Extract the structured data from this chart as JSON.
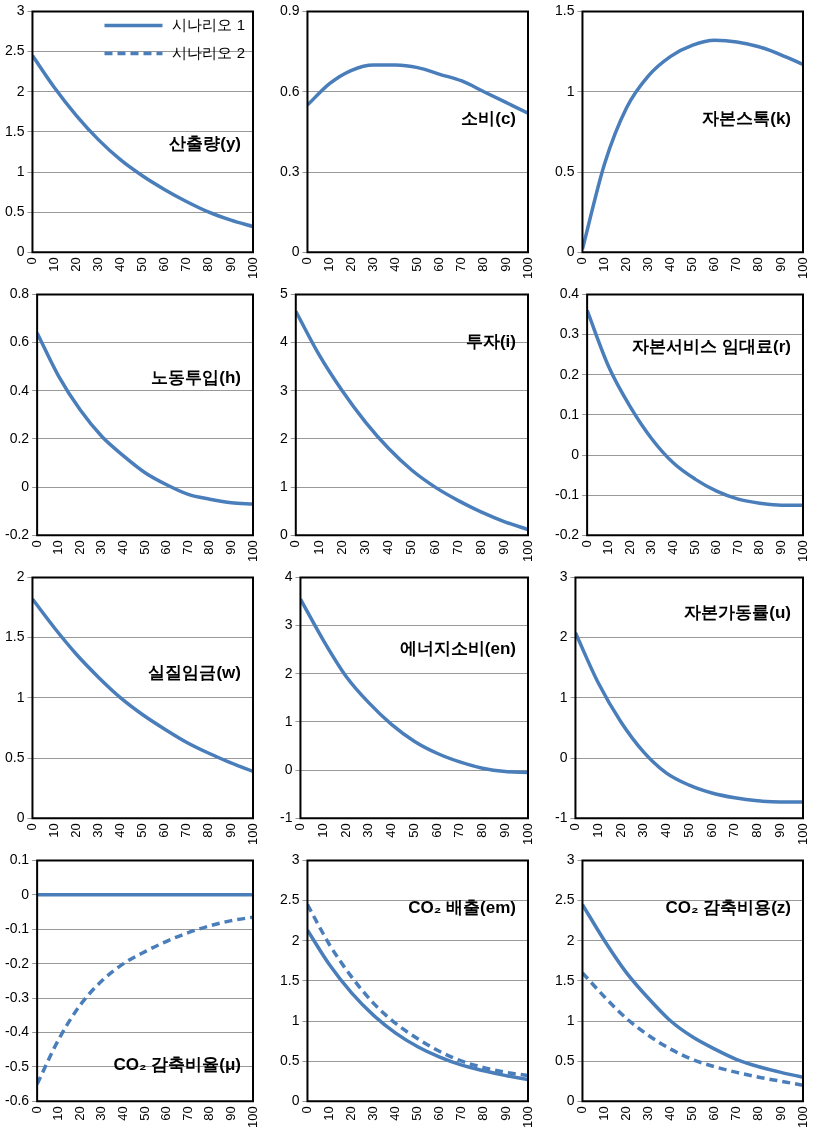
{
  "chart_data": [
    {
      "type": "line",
      "title": "산출량(y)",
      "x": [
        0,
        10,
        20,
        30,
        40,
        50,
        60,
        70,
        80,
        90,
        100
      ],
      "xlim": [
        0,
        100
      ],
      "xticks": [
        0,
        10,
        20,
        30,
        40,
        50,
        60,
        70,
        80,
        90,
        100
      ],
      "ylim": [
        0,
        3
      ],
      "yticks": [
        0,
        0.5,
        1,
        1.5,
        2,
        2.5,
        3
      ],
      "grid": "y",
      "legend": "top right",
      "marker": "none",
      "series": [
        {
          "name": "시나리오 1",
          "color": "#4a7ebb",
          "line_style": "solid",
          "values": [
            2.45,
            2.05,
            1.7,
            1.4,
            1.15,
            0.95,
            0.78,
            0.63,
            0.5,
            0.4,
            0.32
          ]
        },
        {
          "name": "시나리오 2",
          "color": "#4a7ebb",
          "line_style": "dashed",
          "values": [
            null,
            null,
            null,
            null,
            null,
            null,
            null,
            null,
            null,
            null,
            null
          ]
        }
      ]
    },
    {
      "type": "line",
      "title": "소비(c)",
      "x": [
        0,
        10,
        20,
        30,
        40,
        50,
        60,
        70,
        80,
        90,
        100
      ],
      "xlim": [
        0,
        100
      ],
      "xticks": [
        0,
        10,
        20,
        30,
        40,
        50,
        60,
        70,
        80,
        90,
        100
      ],
      "ylim": [
        0,
        0.9
      ],
      "yticks": [
        0,
        0.3,
        0.6,
        0.9
      ],
      "grid": "y",
      "marker": "none",
      "series": [
        {
          "color": "#4a7ebb",
          "line_style": "solid",
          "values": [
            0.55,
            0.63,
            0.68,
            0.7,
            0.7,
            0.69,
            0.665,
            0.64,
            0.6,
            0.56,
            0.52
          ]
        }
      ]
    },
    {
      "type": "line",
      "title": "자본스톡(k)",
      "x": [
        0,
        10,
        20,
        30,
        40,
        50,
        60,
        70,
        80,
        90,
        100
      ],
      "xlim": [
        0,
        100
      ],
      "xticks": [
        0,
        10,
        20,
        30,
        40,
        50,
        60,
        70,
        80,
        90,
        100
      ],
      "ylim": [
        0,
        1.5
      ],
      "yticks": [
        0,
        0.5,
        1,
        1.5
      ],
      "grid": "y",
      "marker": "none",
      "series": [
        {
          "color": "#4a7ebb",
          "line_style": "solid",
          "values": [
            0.02,
            0.55,
            0.9,
            1.1,
            1.22,
            1.29,
            1.32,
            1.31,
            1.28,
            1.23,
            1.17
          ]
        }
      ]
    },
    {
      "type": "line",
      "title": "노동투입(h)",
      "x": [
        0,
        10,
        20,
        30,
        40,
        50,
        60,
        70,
        80,
        90,
        100
      ],
      "xlim": [
        0,
        100
      ],
      "xticks": [
        0,
        10,
        20,
        30,
        40,
        50,
        60,
        70,
        80,
        90,
        100
      ],
      "ylim": [
        -0.2,
        0.8
      ],
      "yticks": [
        -0.2,
        0,
        0.2,
        0.4,
        0.6,
        0.8
      ],
      "grid": "y",
      "marker": "none",
      "series": [
        {
          "color": "#4a7ebb",
          "line_style": "solid",
          "values": [
            0.64,
            0.46,
            0.32,
            0.21,
            0.13,
            0.06,
            0.01,
            -0.03,
            -0.05,
            -0.065,
            -0.07
          ]
        }
      ]
    },
    {
      "type": "line",
      "title": "투자(i)",
      "x": [
        0,
        10,
        20,
        30,
        40,
        50,
        60,
        70,
        80,
        90,
        100
      ],
      "xlim": [
        0,
        100
      ],
      "xticks": [
        0,
        10,
        20,
        30,
        40,
        50,
        60,
        70,
        80,
        90,
        100
      ],
      "ylim": [
        0,
        5
      ],
      "yticks": [
        0,
        1,
        2,
        3,
        4,
        5
      ],
      "grid": "y",
      "marker": "none",
      "series": [
        {
          "color": "#4a7ebb",
          "line_style": "solid",
          "values": [
            4.65,
            3.75,
            3.0,
            2.35,
            1.8,
            1.35,
            1.0,
            0.72,
            0.48,
            0.28,
            0.12
          ]
        }
      ]
    },
    {
      "type": "line",
      "title": "자본서비스 임대료(r)",
      "x": [
        0,
        10,
        20,
        30,
        40,
        50,
        60,
        70,
        80,
        90,
        100
      ],
      "xlim": [
        0,
        100
      ],
      "xticks": [
        0,
        10,
        20,
        30,
        40,
        50,
        60,
        70,
        80,
        90,
        100
      ],
      "ylim": [
        -0.2,
        0.4
      ],
      "yticks": [
        -0.2,
        -0.1,
        0,
        0.1,
        0.2,
        0.3,
        0.4
      ],
      "grid": "y",
      "marker": "none",
      "series": [
        {
          "color": "#4a7ebb",
          "line_style": "solid",
          "values": [
            0.36,
            0.22,
            0.12,
            0.04,
            -0.02,
            -0.06,
            -0.09,
            -0.11,
            -0.12,
            -0.125,
            -0.125
          ]
        }
      ]
    },
    {
      "type": "line",
      "title": "실질임금(w)",
      "x": [
        0,
        10,
        20,
        30,
        40,
        50,
        60,
        70,
        80,
        90,
        100
      ],
      "xlim": [
        0,
        100
      ],
      "xticks": [
        0,
        10,
        20,
        30,
        40,
        50,
        60,
        70,
        80,
        90,
        100
      ],
      "ylim": [
        0,
        2
      ],
      "yticks": [
        0,
        0.5,
        1,
        1.5,
        2
      ],
      "grid": "y",
      "marker": "none",
      "series": [
        {
          "color": "#4a7ebb",
          "line_style": "solid",
          "values": [
            1.82,
            1.58,
            1.36,
            1.17,
            1.0,
            0.86,
            0.74,
            0.63,
            0.54,
            0.46,
            0.39
          ]
        }
      ]
    },
    {
      "type": "line",
      "title": "에너지소비(en)",
      "x": [
        0,
        10,
        20,
        30,
        40,
        50,
        60,
        70,
        80,
        90,
        100
      ],
      "xlim": [
        0,
        100
      ],
      "xticks": [
        0,
        10,
        20,
        30,
        40,
        50,
        60,
        70,
        80,
        90,
        100
      ],
      "ylim": [
        -1,
        4
      ],
      "yticks": [
        -1,
        0,
        1,
        2,
        3,
        4
      ],
      "grid": "y",
      "marker": "none",
      "series": [
        {
          "color": "#4a7ebb",
          "line_style": "solid",
          "values": [
            3.55,
            2.7,
            1.95,
            1.4,
            0.95,
            0.6,
            0.35,
            0.17,
            0.04,
            -0.03,
            -0.05
          ]
        }
      ]
    },
    {
      "type": "line",
      "title": "자본가동률(u)",
      "x": [
        0,
        10,
        20,
        30,
        40,
        50,
        60,
        70,
        80,
        90,
        100
      ],
      "xlim": [
        0,
        100
      ],
      "xticks": [
        0,
        10,
        20,
        30,
        40,
        50,
        60,
        70,
        80,
        90,
        100
      ],
      "ylim": [
        -1,
        3
      ],
      "yticks": [
        -1,
        0,
        1,
        2,
        3
      ],
      "grid": "y",
      "marker": "none",
      "series": [
        {
          "color": "#4a7ebb",
          "line_style": "solid",
          "values": [
            2.08,
            1.25,
            0.6,
            0.1,
            -0.25,
            -0.45,
            -0.58,
            -0.66,
            -0.71,
            -0.73,
            -0.73
          ]
        }
      ]
    },
    {
      "type": "line",
      "title": "CO₂ 감축비율(μ)",
      "x": [
        0,
        10,
        20,
        30,
        40,
        50,
        60,
        70,
        80,
        90,
        100
      ],
      "xlim": [
        0,
        100
      ],
      "xticks": [
        0,
        10,
        20,
        30,
        40,
        50,
        60,
        70,
        80,
        90,
        100
      ],
      "ylim": [
        -0.6,
        0.1
      ],
      "yticks": [
        -0.6,
        -0.5,
        -0.4,
        -0.3,
        -0.2,
        -0.1,
        0,
        0.1
      ],
      "grid": "y",
      "marker": "none",
      "series": [
        {
          "color": "#4a7ebb",
          "line_style": "solid",
          "values": [
            0,
            0,
            0,
            0,
            0,
            0,
            0,
            0,
            0,
            0,
            0
          ]
        },
        {
          "color": "#4a7ebb",
          "line_style": "dashed",
          "values": [
            -0.55,
            -0.42,
            -0.32,
            -0.25,
            -0.2,
            -0.165,
            -0.135,
            -0.11,
            -0.09,
            -0.075,
            -0.065
          ]
        }
      ]
    },
    {
      "type": "line",
      "title": "CO₂ 배출(em)",
      "x": [
        0,
        10,
        20,
        30,
        40,
        50,
        60,
        70,
        80,
        90,
        100
      ],
      "xlim": [
        0,
        100
      ],
      "xticks": [
        0,
        10,
        20,
        30,
        40,
        50,
        60,
        70,
        80,
        90,
        100
      ],
      "ylim": [
        0,
        3
      ],
      "yticks": [
        0,
        0.5,
        1,
        1.5,
        2,
        2.5,
        3
      ],
      "grid": "y",
      "marker": "none",
      "series": [
        {
          "color": "#4a7ebb",
          "line_style": "solid",
          "values": [
            2.13,
            1.7,
            1.35,
            1.07,
            0.85,
            0.68,
            0.55,
            0.45,
            0.38,
            0.32,
            0.27
          ]
        },
        {
          "color": "#4a7ebb",
          "line_style": "dashed",
          "values": [
            2.45,
            1.95,
            1.55,
            1.22,
            0.97,
            0.78,
            0.62,
            0.5,
            0.42,
            0.36,
            0.32
          ]
        }
      ]
    },
    {
      "type": "line",
      "title": "CO₂ 감축비용(z)",
      "x": [
        0,
        10,
        20,
        30,
        40,
        50,
        60,
        70,
        80,
        90,
        100
      ],
      "xlim": [
        0,
        100
      ],
      "xticks": [
        0,
        10,
        20,
        30,
        40,
        50,
        60,
        70,
        80,
        90,
        100
      ],
      "ylim": [
        0,
        3
      ],
      "yticks": [
        0,
        0.5,
        1,
        1.5,
        2,
        2.5,
        3
      ],
      "grid": "y",
      "marker": "none",
      "series": [
        {
          "color": "#4a7ebb",
          "line_style": "solid",
          "values": [
            2.45,
            2.0,
            1.6,
            1.28,
            1.0,
            0.8,
            0.65,
            0.52,
            0.43,
            0.36,
            0.3
          ]
        },
        {
          "color": "#4a7ebb",
          "line_style": "dashed",
          "values": [
            1.6,
            1.3,
            1.03,
            0.82,
            0.65,
            0.52,
            0.43,
            0.36,
            0.3,
            0.25,
            0.2
          ]
        }
      ]
    }
  ]
}
